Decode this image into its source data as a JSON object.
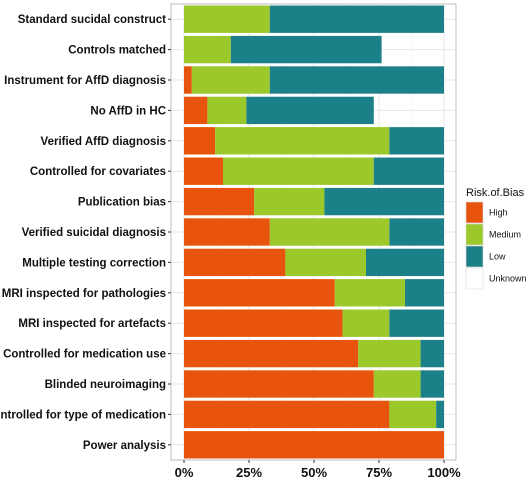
{
  "chart_data": {
    "type": "bar",
    "orientation": "horizontal",
    "stacked": true,
    "categories": [
      "Standard sucidal construct",
      "Controls matched",
      "Instrument for AffD diagnosis",
      "No AffD in HC",
      "Verified AffD diagnosis",
      "Controlled for covariates",
      "Publication bias",
      "Verified suicidal diagnosis",
      "Multiple testing correction",
      "MRI inspected for pathologies",
      "MRI inspected for artefacts",
      "Controlled for medication use",
      "Blinded neuroimaging",
      "Controlled for type of medication",
      "Power analysis"
    ],
    "series": [
      {
        "name": "High",
        "color": "#E8530E",
        "values": [
          0,
          0,
          3,
          9,
          12,
          15,
          27,
          33,
          39,
          58,
          61,
          67,
          73,
          79,
          100
        ]
      },
      {
        "name": "Medium",
        "color": "#9BC82A",
        "values": [
          33,
          18,
          30,
          15,
          67,
          58,
          27,
          46,
          31,
          27,
          18,
          24,
          18,
          18,
          0
        ]
      },
      {
        "name": "Low",
        "color": "#1C8089",
        "values": [
          67,
          58,
          67,
          49,
          21,
          27,
          46,
          21,
          30,
          15,
          21,
          9,
          9,
          3,
          0
        ]
      },
      {
        "name": "Unknown",
        "color": "#FFFFFF",
        "values": [
          0,
          24,
          0,
          27,
          0,
          0,
          0,
          0,
          0,
          0,
          0,
          0,
          0,
          0,
          0
        ]
      }
    ],
    "x_ticks": [
      "0%",
      "25%",
      "50%",
      "75%",
      "100%"
    ],
    "xlim": [
      0,
      100
    ],
    "legend": {
      "title": "Risk.of.Bias",
      "position": "right"
    },
    "grid": true
  }
}
